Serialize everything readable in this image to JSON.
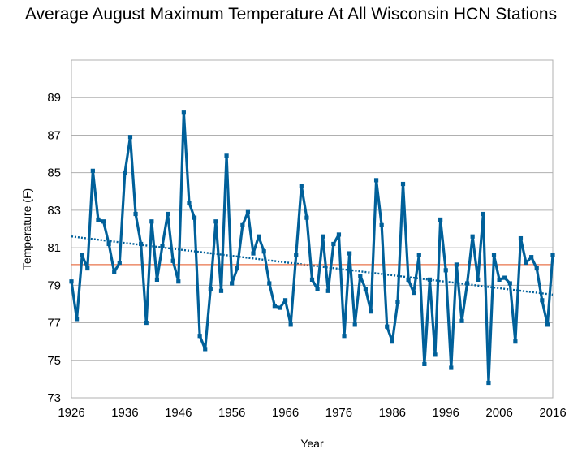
{
  "chart_data": {
    "type": "line",
    "title": "Average August Maximum Temperature At All Wisconsin HCN Stations",
    "xlabel": "Year",
    "ylabel": "Temperature (F)",
    "xlim": [
      1926,
      2016
    ],
    "ylim": [
      73,
      91
    ],
    "x_ticks": [
      "1926",
      "1936",
      "1946",
      "1956",
      "1966",
      "1976",
      "1986",
      "1996",
      "2006",
      "2016"
    ],
    "y_ticks": [
      "73",
      "75",
      "77",
      "79",
      "81",
      "83",
      "85",
      "87",
      "89"
    ],
    "grid": "horizontal",
    "legend": "none",
    "series": [
      {
        "type": "line",
        "color": "#00609a",
        "x": [
          1926,
          1927,
          1928,
          1929,
          1930,
          1931,
          1932,
          1933,
          1934,
          1935,
          1936,
          1937,
          1938,
          1939,
          1940,
          1941,
          1942,
          1943,
          1944,
          1945,
          1946,
          1947,
          1948,
          1949,
          1950,
          1951,
          1952,
          1953,
          1954,
          1955,
          1956,
          1957,
          1958,
          1959,
          1960,
          1961,
          1962,
          1963,
          1964,
          1965,
          1966,
          1967,
          1968,
          1969,
          1970,
          1971,
          1972,
          1973,
          1974,
          1975,
          1976,
          1977,
          1978,
          1979,
          1980,
          1981,
          1982,
          1983,
          1984,
          1985,
          1986,
          1987,
          1988,
          1989,
          1990,
          1991,
          1992,
          1993,
          1994,
          1995,
          1996,
          1997,
          1998,
          1999,
          2000,
          2001,
          2002,
          2003,
          2004,
          2005,
          2006,
          2007,
          2008,
          2009,
          2010,
          2011,
          2012,
          2013,
          2014,
          2015,
          2016
        ],
        "y": [
          79.2,
          77.2,
          80.6,
          79.9,
          85.1,
          82.5,
          82.4,
          81.2,
          79.7,
          80.2,
          85.0,
          86.9,
          82.8,
          81.2,
          77.0,
          82.4,
          79.3,
          81.1,
          82.8,
          80.3,
          79.2,
          88.2,
          83.4,
          82.6,
          76.3,
          75.6,
          78.8,
          82.4,
          78.7,
          85.9,
          79.1,
          79.9,
          82.2,
          82.9,
          80.7,
          81.6,
          80.8,
          79.1,
          77.9,
          77.8,
          78.2,
          76.9,
          80.6,
          84.3,
          82.6,
          79.3,
          78.8,
          81.6,
          78.7,
          81.2,
          81.7,
          76.3,
          80.7,
          76.9,
          79.5,
          78.8,
          77.6,
          84.6,
          82.2,
          76.8,
          76.0,
          78.1,
          84.4,
          79.3,
          78.6,
          80.6,
          74.8,
          79.3,
          75.3,
          82.5,
          79.8,
          74.6,
          80.1,
          77.1,
          79.1,
          81.6,
          79.3,
          82.8,
          73.8,
          80.6,
          79.3,
          79.4,
          79.1,
          76.0,
          81.5,
          80.2,
          80.5,
          79.9,
          78.2,
          76.9,
          80.6
        ]
      },
      {
        "type": "trend",
        "style": "dotted",
        "color": "#00609a",
        "x": [
          1926,
          2016
        ],
        "y": [
          81.6,
          78.5
        ]
      },
      {
        "type": "reference",
        "style": "solid",
        "color": "#e8734a",
        "x": [
          1926,
          2016
        ],
        "y": [
          80.1,
          80.1
        ]
      }
    ]
  }
}
